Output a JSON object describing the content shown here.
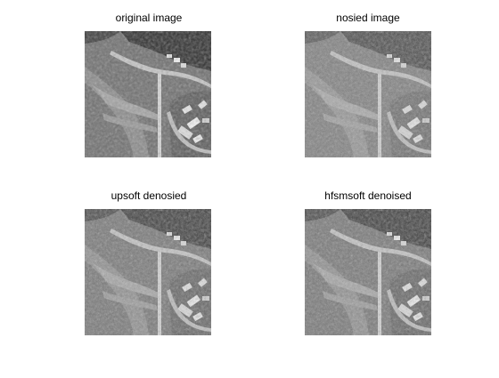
{
  "figure": {
    "panels": [
      {
        "title": "original image",
        "variant": "smooth"
      },
      {
        "title": "nosied image",
        "variant": "noisy"
      },
      {
        "title": "upsoft denosied",
        "variant": "denoised"
      },
      {
        "title": "hfsmsoft denoised",
        "variant": "denoised"
      }
    ],
    "background_color": "#ffffff"
  }
}
